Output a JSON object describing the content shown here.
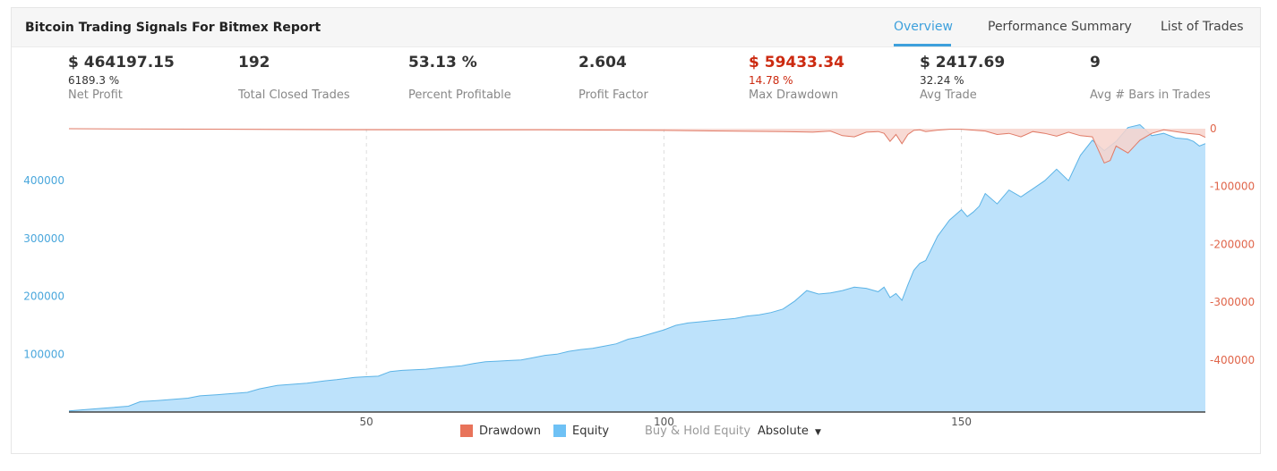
{
  "header": {
    "title": "Bitcoin Trading Signals For Bitmex Report",
    "tabs": [
      {
        "label": "Overview",
        "active": true
      },
      {
        "label": "Performance Summary",
        "active": false
      },
      {
        "label": "List of Trades",
        "active": false
      }
    ]
  },
  "stats": [
    {
      "value": "$ 464197.15",
      "percent": "6189.3 %",
      "label": "Net Profit"
    },
    {
      "value": "192",
      "percent": "",
      "label": "Total Closed Trades"
    },
    {
      "value": "53.13 %",
      "percent": "",
      "label": "Percent Profitable"
    },
    {
      "value": "2.604",
      "percent": "",
      "label": "Profit Factor"
    },
    {
      "value": "$ 59433.34",
      "percent": "14.78 %",
      "label": "Max Drawdown"
    },
    {
      "value": "$ 2417.69",
      "percent": "32.24 %",
      "label": "Avg Trade"
    },
    {
      "value": "9",
      "percent": "",
      "label": "Avg # Bars in Trades"
    }
  ],
  "legend": {
    "drawdown": "Drawdown",
    "equity": "Equity",
    "buy_hold": "Buy & Hold Equity",
    "mode": "Absolute"
  },
  "colors": {
    "accent": "#3da0dc",
    "equity_fill": "#bde2fb",
    "equity_line": "#5bb3e6",
    "drawdown_fill": "#f7d3cc",
    "drawdown_line": "#e07a66",
    "drawdown_legend": "#e8735a",
    "equity_legend": "#6ec1f5",
    "max_drawdown_text": "#cc2a10",
    "left_axis_text": "#4aa7dc",
    "right_axis_text": "#e0654a"
  },
  "chart_data": {
    "type": "area",
    "x_ticks": [
      50,
      100,
      150
    ],
    "left_axis": {
      "ticks": [
        100000,
        200000,
        300000,
        400000
      ],
      "range": [
        0,
        490000
      ]
    },
    "right_axis": {
      "ticks": [
        0,
        -100000,
        -200000,
        -300000,
        -400000
      ],
      "range": [
        -490000,
        0
      ]
    },
    "series": [
      {
        "name": "Equity",
        "x": [
          0,
          5,
          10,
          12,
          15,
          20,
          22,
          25,
          30,
          32,
          35,
          40,
          43,
          45,
          48,
          50,
          52,
          54,
          56,
          58,
          60,
          62,
          64,
          66,
          68,
          70,
          72,
          74,
          76,
          78,
          80,
          82,
          84,
          86,
          88,
          90,
          92,
          94,
          96,
          98,
          100,
          102,
          104,
          106,
          108,
          110,
          112,
          114,
          116,
          118,
          120,
          122,
          124,
          126,
          128,
          130,
          132,
          134,
          136,
          137,
          138,
          139,
          140,
          141,
          142,
          143,
          144,
          146,
          148,
          150,
          151,
          152,
          153,
          154,
          156,
          158,
          160,
          162,
          164,
          166,
          168,
          170,
          172,
          174,
          176,
          178,
          180,
          182,
          184,
          186,
          188,
          189,
          190,
          191
        ],
        "values": [
          2000,
          6000,
          10000,
          18000,
          20000,
          24000,
          28000,
          30000,
          34000,
          40000,
          46000,
          50000,
          54000,
          56000,
          60000,
          61000,
          62000,
          70000,
          72000,
          73000,
          74000,
          76000,
          78000,
          80000,
          84000,
          87000,
          88000,
          89000,
          90000,
          94000,
          98000,
          100000,
          105000,
          108000,
          110000,
          114000,
          118000,
          126000,
          130000,
          136000,
          142000,
          150000,
          154000,
          156000,
          158000,
          160000,
          162000,
          166000,
          168000,
          172000,
          178000,
          192000,
          210000,
          204000,
          206000,
          210000,
          216000,
          214000,
          208000,
          216000,
          198000,
          205000,
          193000,
          220000,
          245000,
          257000,
          262000,
          304000,
          332000,
          350000,
          338000,
          346000,
          356000,
          378000,
          360000,
          384000,
          372000,
          386000,
          400000,
          420000,
          400000,
          444000,
          470000,
          452000,
          468000,
          492000,
          497000,
          478000,
          482000,
          474000,
          472000,
          468000,
          460000,
          464197
        ]
      },
      {
        "name": "Drawdown",
        "x": [
          0,
          20,
          40,
          60,
          80,
          100,
          110,
          120,
          125,
          128,
          130,
          132,
          134,
          136,
          137,
          138,
          139,
          140,
          141,
          142,
          143,
          144,
          146,
          148,
          150,
          152,
          154,
          156,
          158,
          160,
          162,
          164,
          166,
          168,
          170,
          172,
          174,
          175,
          176,
          178,
          180,
          182,
          184,
          186,
          188,
          190,
          191
        ],
        "values": [
          0,
          -800,
          -1500,
          -2000,
          -1800,
          -3000,
          -4000,
          -5000,
          -6000,
          -4000,
          -12000,
          -14000,
          -6000,
          -5000,
          -8000,
          -22000,
          -10000,
          -26000,
          -10000,
          -3000,
          -2000,
          -5000,
          -2500,
          -1000,
          -1000,
          -2500,
          -4000,
          -10000,
          -8000,
          -14000,
          -5000,
          -8000,
          -13000,
          -6000,
          -12000,
          -14000,
          -59433,
          -55000,
          -30000,
          -42000,
          -20000,
          -8000,
          -2000,
          -5000,
          -8000,
          -10000,
          -15000
        ]
      }
    ]
  }
}
